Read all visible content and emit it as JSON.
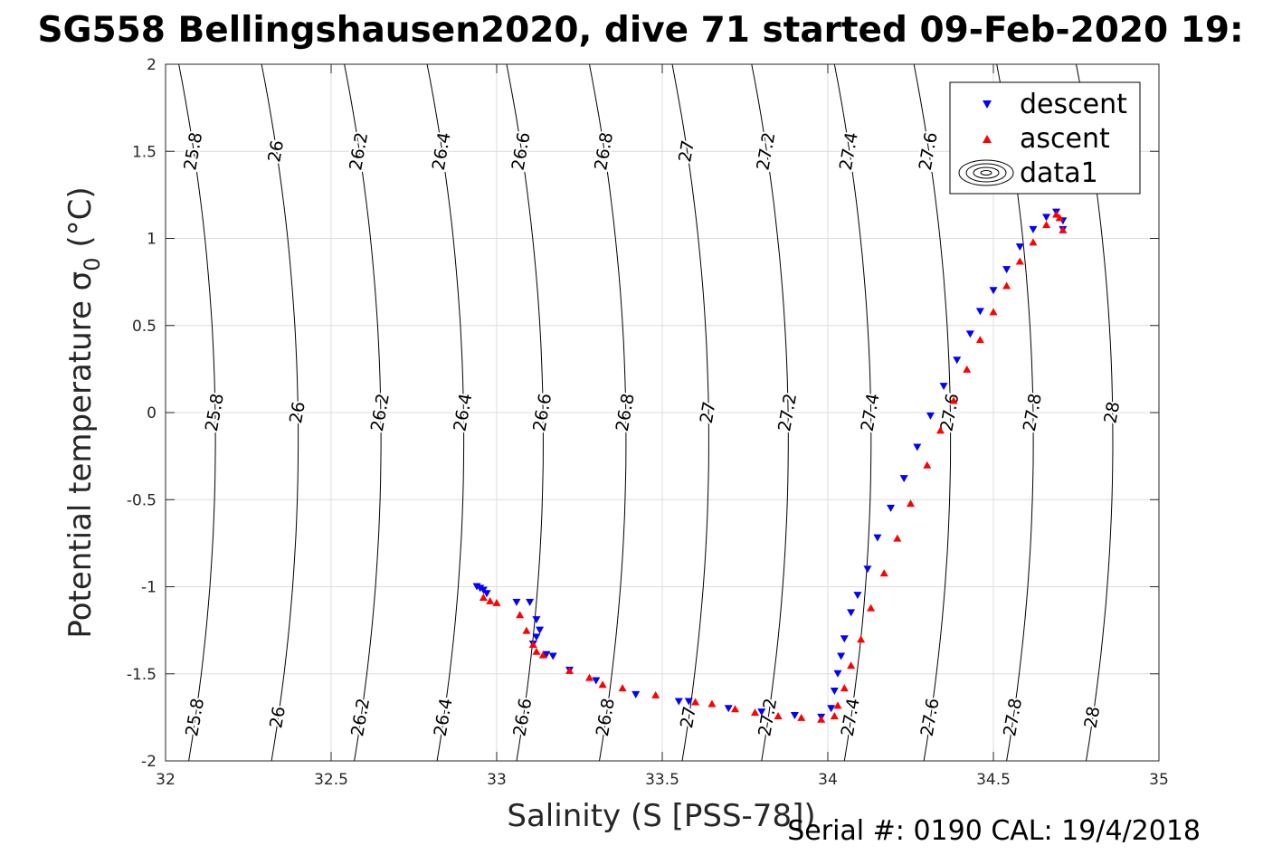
{
  "chart_data": {
    "type": "scatter",
    "title": "SG558 Bellingshausen2020, dive 71 started 09-Feb-2020 19:",
    "xlabel": "Salinity (S [PSS-78])",
    "ylabel": "Potential temperature σ",
    "ylabel_subscript": "0",
    "ylabel_unit": " (°C)",
    "footer": "Serial #: 0190  CAL: 19/4/2018",
    "xlim": [
      32,
      35
    ],
    "ylim": [
      -2,
      2
    ],
    "xticks": [
      "32",
      "32.5",
      "33",
      "33.5",
      "34",
      "34.5",
      "35"
    ],
    "xtick_values": [
      32,
      32.5,
      33,
      33.5,
      34,
      34.5,
      35
    ],
    "yticks": [
      "-2",
      "-1.5",
      "-1",
      "-0.5",
      "0",
      "0.5",
      "1",
      "1.5",
      "2"
    ],
    "ytick_values": [
      -2,
      -1.5,
      -1,
      -0.5,
      0,
      0.5,
      1,
      1.5,
      2
    ],
    "grid": true,
    "legend": {
      "placement": "top-right",
      "entries": [
        {
          "name": "descent",
          "color": "#0000ff",
          "marker": "triangle-down"
        },
        {
          "name": "ascent",
          "color": "#ff0000",
          "marker": "triangle-up"
        },
        {
          "name": "data1",
          "color": "#000000",
          "marker": "contour"
        }
      ]
    },
    "contours": {
      "color": "#000000",
      "levels": [
        {
          "label": "25.8",
          "x_at_ymin": 32.07,
          "x_at_ymax": 32.04,
          "x_at_y0": 32.15
        },
        {
          "label": "26",
          "x_at_ymin": 32.32,
          "x_at_ymax": 32.29,
          "x_at_y0": 32.4
        },
        {
          "label": "26.2",
          "x_at_ymin": 32.57,
          "x_at_ymax": 32.54,
          "x_at_y0": 32.65
        },
        {
          "label": "26.4",
          "x_at_ymin": 32.82,
          "x_at_ymax": 32.79,
          "x_at_y0": 32.9
        },
        {
          "label": "26.6",
          "x_at_ymin": 33.06,
          "x_at_ymax": 33.03,
          "x_at_y0": 33.14
        },
        {
          "label": "26.8",
          "x_at_ymin": 33.31,
          "x_at_ymax": 33.28,
          "x_at_y0": 33.39
        },
        {
          "label": "27",
          "x_at_ymin": 33.56,
          "x_at_ymax": 33.53,
          "x_at_y0": 33.64
        },
        {
          "label": "27.2",
          "x_at_ymin": 33.8,
          "x_at_ymax": 33.77,
          "x_at_y0": 33.88
        },
        {
          "label": "27.4",
          "x_at_ymin": 34.05,
          "x_at_ymax": 34.02,
          "x_at_y0": 34.13
        },
        {
          "label": "27.6",
          "x_at_ymin": 34.29,
          "x_at_ymax": 34.26,
          "x_at_y0": 34.37
        },
        {
          "label": "27.8",
          "x_at_ymin": 34.54,
          "x_at_ymax": 34.51,
          "x_at_y0": 34.62
        },
        {
          "label": "28",
          "x_at_ymin": 34.78,
          "x_at_ymax": 34.75,
          "x_at_y0": 34.86
        }
      ]
    },
    "series": [
      {
        "name": "descent",
        "color": "#0000ff",
        "marker": "triangle-down",
        "x": [
          32.94,
          32.95,
          32.96,
          32.97,
          33.06,
          33.1,
          33.12,
          33.13,
          33.12,
          33.11,
          33.15,
          33.17,
          33.22,
          33.3,
          33.42,
          33.55,
          33.58,
          33.7,
          33.8,
          33.9,
          33.98,
          34.01,
          34.02,
          34.03,
          34.04,
          34.05,
          34.07,
          34.09,
          34.12,
          34.15,
          34.19,
          34.23,
          34.27,
          34.31,
          34.35,
          34.39,
          34.43,
          34.46,
          34.5,
          34.54,
          34.58,
          34.62,
          34.66,
          34.69,
          34.71,
          34.71
        ],
        "y": [
          -1.0,
          -1.01,
          -1.02,
          -1.04,
          -1.09,
          -1.09,
          -1.19,
          -1.25,
          -1.29,
          -1.33,
          -1.39,
          -1.4,
          -1.48,
          -1.54,
          -1.62,
          -1.66,
          -1.66,
          -1.7,
          -1.72,
          -1.74,
          -1.75,
          -1.7,
          -1.6,
          -1.5,
          -1.4,
          -1.3,
          -1.15,
          -1.05,
          -0.9,
          -0.72,
          -0.55,
          -0.38,
          -0.2,
          -0.02,
          0.15,
          0.3,
          0.45,
          0.58,
          0.7,
          0.82,
          0.95,
          1.05,
          1.12,
          1.15,
          1.1,
          1.05
        ]
      },
      {
        "name": "ascent",
        "color": "#ff0000",
        "marker": "triangle-up",
        "x": [
          32.96,
          32.98,
          33.0,
          33.07,
          33.09,
          33.11,
          33.12,
          33.14,
          33.22,
          33.28,
          33.32,
          33.38,
          33.48,
          33.6,
          33.65,
          33.72,
          33.78,
          33.85,
          33.92,
          33.98,
          34.02,
          34.03,
          34.05,
          34.07,
          34.1,
          34.13,
          34.17,
          34.21,
          34.25,
          34.3,
          34.34,
          34.38,
          34.42,
          34.46,
          34.5,
          34.54,
          34.58,
          34.62,
          34.66,
          34.69,
          34.7,
          34.71
        ],
        "y": [
          -1.06,
          -1.08,
          -1.09,
          -1.16,
          -1.25,
          -1.33,
          -1.37,
          -1.39,
          -1.48,
          -1.52,
          -1.56,
          -1.58,
          -1.62,
          -1.66,
          -1.67,
          -1.7,
          -1.72,
          -1.74,
          -1.75,
          -1.76,
          -1.74,
          -1.68,
          -1.58,
          -1.45,
          -1.3,
          -1.12,
          -0.92,
          -0.72,
          -0.52,
          -0.3,
          -0.1,
          0.07,
          0.25,
          0.42,
          0.58,
          0.73,
          0.87,
          0.98,
          1.08,
          1.14,
          1.12,
          1.05
        ]
      }
    ]
  }
}
